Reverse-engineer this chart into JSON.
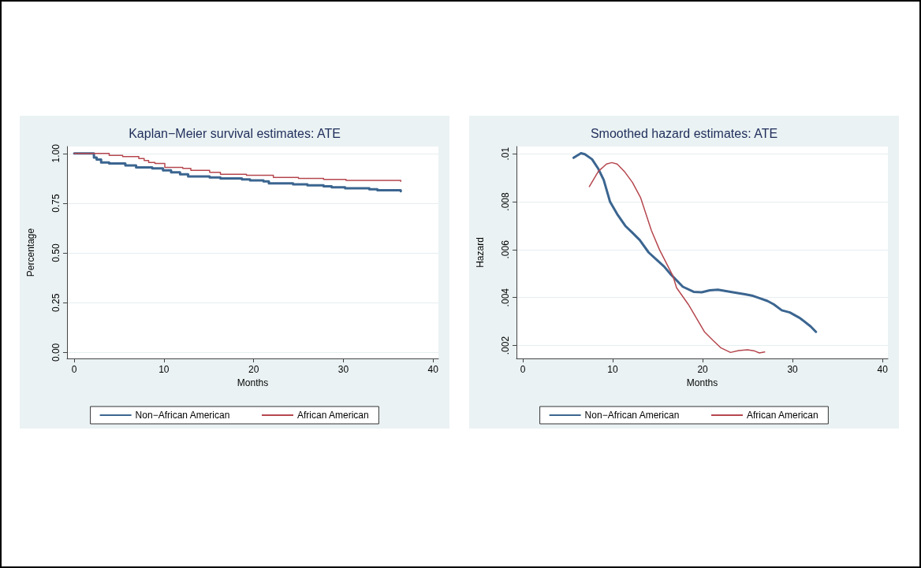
{
  "chart_data": [
    {
      "type": "step",
      "title": "Kaplan−Meier survival estimates: ATE",
      "xlabel": "Months",
      "ylabel": "Percentage",
      "xlim": [
        -0.8,
        40.6
      ],
      "xticks": [
        0,
        10,
        20,
        30,
        40
      ],
      "ylim": [
        -0.03,
        1.035
      ],
      "yticks": [
        {
          "value": 0,
          "label": "0.00"
        },
        {
          "value": 0.25,
          "label": "0.25"
        },
        {
          "value": 0.5,
          "label": "0.50"
        },
        {
          "value": 0.75,
          "label": "0.75"
        },
        {
          "value": 1,
          "label": "1.00"
        }
      ],
      "grid": "y",
      "legend": "bottom",
      "marker": "none",
      "series": [
        {
          "name": "Non−African American",
          "color": "#3b6590",
          "x": [
            0,
            2.2,
            2.5,
            3.0,
            3.9,
            5.7,
            6.9,
            8.7,
            9.9,
            10.8,
            11.8,
            12.7,
            15.1,
            16.3,
            18.7,
            19.6,
            21.1,
            21.7,
            24.4,
            26.0,
            27.8,
            28.7,
            30.2,
            32.9,
            33.8,
            36.4
          ],
          "values": [
            1,
            0.98,
            0.97,
            0.955,
            0.95,
            0.94,
            0.93,
            0.925,
            0.915,
            0.905,
            0.895,
            0.885,
            0.88,
            0.875,
            0.87,
            0.865,
            0.86,
            0.85,
            0.845,
            0.84,
            0.835,
            0.83,
            0.825,
            0.82,
            0.815,
            0.81
          ]
        },
        {
          "name": "African American",
          "color": "#b5474e",
          "x": [
            0,
            3.9,
            5.4,
            7.2,
            7.8,
            8.3,
            9.0,
            10.1,
            12.1,
            13.0,
            15.1,
            16.3,
            19.2,
            22.2,
            25.0,
            27.8,
            30.3,
            36.4
          ],
          "values": [
            1,
            0.99,
            0.985,
            0.975,
            0.965,
            0.955,
            0.95,
            0.93,
            0.925,
            0.915,
            0.905,
            0.895,
            0.89,
            0.88,
            0.875,
            0.87,
            0.865,
            0.86
          ]
        }
      ]
    },
    {
      "type": "line",
      "title": "Smoothed hazard estimates: ATE",
      "xlabel": "Months",
      "ylabel": "Hazard",
      "xlim": [
        -0.7,
        40.6
      ],
      "xticks": [
        0,
        10,
        20,
        30,
        40
      ],
      "ylim": [
        0.00146,
        0.0103
      ],
      "yticks": [
        {
          "value": 0.002,
          "label": ".002"
        },
        {
          "value": 0.004,
          "label": ".004"
        },
        {
          "value": 0.006,
          "label": ".006"
        },
        {
          "value": 0.008,
          "label": ".008"
        },
        {
          "value": 0.01,
          "label": ".01"
        }
      ],
      "grid": "y",
      "legend": "bottom",
      "marker": "none",
      "series": [
        {
          "name": "Non−African American",
          "color": "#3b6590",
          "x": [
            5.65,
            6.47,
            6.9,
            7.7,
            8.4,
            9.0,
            9.7,
            10.5,
            11.4,
            12.1,
            13.0,
            14.0,
            14.9,
            15.7,
            16.4,
            17.8,
            19.0,
            19.9,
            20.8,
            21.7,
            23.5,
            24.7,
            25.6,
            26.3,
            27.2,
            27.9,
            28.8,
            29.7,
            30.8,
            32.0,
            32.6
          ],
          "values": [
            0.00983,
            0.01002,
            0.00998,
            0.00977,
            0.00937,
            0.00891,
            0.008,
            0.00748,
            0.00699,
            0.00674,
            0.0064,
            0.00588,
            0.00557,
            0.0053,
            0.00499,
            0.00445,
            0.00424,
            0.00422,
            0.0043,
            0.00433,
            0.00421,
            0.00414,
            0.00407,
            0.00398,
            0.00386,
            0.00372,
            0.00347,
            0.00338,
            0.00315,
            0.0028,
            0.00257
          ]
        },
        {
          "name": "African American",
          "color": "#b5474e",
          "x": [
            7.4,
            8.4,
            9.3,
            9.9,
            10.5,
            11.3,
            12.2,
            13.1,
            14.3,
            15.2,
            16.7,
            17.1,
            18.4,
            19.3,
            20.2,
            21.1,
            22.0,
            23.1,
            24.0,
            25.0,
            25.8,
            26.3,
            26.9
          ],
          "values": [
            0.00863,
            0.00926,
            0.00957,
            0.00963,
            0.00957,
            0.00926,
            0.0088,
            0.00817,
            0.0068,
            0.006,
            0.0049,
            0.00441,
            0.00372,
            0.00315,
            0.00257,
            0.00223,
            0.00191,
            0.00171,
            0.00179,
            0.00182,
            0.00177,
            0.00169,
            0.00173
          ]
        }
      ]
    }
  ]
}
